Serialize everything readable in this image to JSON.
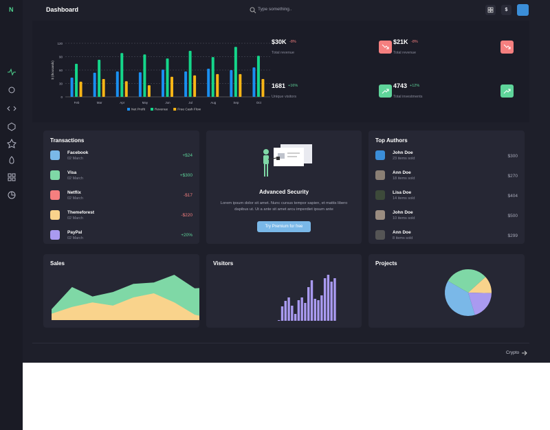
{
  "sidebar": {
    "logo": "N"
  },
  "header": {
    "title": "Dashboard",
    "search_placeholder": "Type something..",
    "currency": "$"
  },
  "stats": [
    {
      "value": "$30K",
      "change": "-8%",
      "label": "Total revenue"
    },
    {
      "value": "$21K",
      "change": "-8%",
      "label": "Total revenue"
    },
    {
      "value": "1681",
      "change": "+16%",
      "label": "Unique visitors"
    },
    {
      "value": "4743",
      "change": "+12%",
      "label": "Total investments"
    }
  ],
  "transactions": {
    "title": "Transactions",
    "items": [
      {
        "name": "Facebook",
        "date": "02 March",
        "amount": "+$24"
      },
      {
        "name": "Visa",
        "date": "02 March",
        "amount": "+$300"
      },
      {
        "name": "Netflix",
        "date": "02 March",
        "amount": "-$17"
      },
      {
        "name": "Themeforest",
        "date": "02 March",
        "amount": "-$220"
      },
      {
        "name": "PayPal",
        "date": "02 March",
        "amount": "+20%"
      }
    ]
  },
  "security": {
    "title": "Advanced Security",
    "text": "Lorem ipsum dolor sit amet. Nunc cursus tempor sapien, et mattis libero dapibus ut. Ut a ante sit amet arcu imperdiet ipsum ante",
    "button": "Try Premium for free"
  },
  "top_authors": {
    "title": "Top Authors",
    "items": [
      {
        "name": "John Doe",
        "sold": "23 items sold",
        "amount": "$300"
      },
      {
        "name": "Ann Doe",
        "sold": "18 items sold",
        "amount": "$270"
      },
      {
        "name": "Lisa Doe",
        "sold": "14 items sold",
        "amount": "$404"
      },
      {
        "name": "John Doe",
        "sold": "10 items sold",
        "amount": "$500"
      },
      {
        "name": "Ann Doe",
        "sold": "8 items sold",
        "amount": "$299"
      }
    ]
  },
  "chart_data": [
    {
      "type": "bar",
      "ylabel": "$ (thousands)",
      "categories": [
        "Feb",
        "Mar",
        "Apr",
        "May",
        "Jun",
        "Jul",
        "Aug",
        "Sep",
        "Oct"
      ],
      "series": [
        {
          "name": "Net Profit",
          "color": "#1a8ff0",
          "values": [
            43,
            54,
            57,
            55,
            61,
            57,
            63,
            60,
            66
          ]
        },
        {
          "name": "Revenue",
          "color": "#14d68a",
          "values": [
            74,
            83,
            98,
            95,
            86,
            103,
            89,
            112,
            92
          ]
        },
        {
          "name": "Free Cash Flow",
          "color": "#f8b516",
          "values": [
            34,
            40,
            35,
            26,
            45,
            48,
            51,
            51,
            40
          ]
        }
      ],
      "ylim": [
        0,
        120
      ],
      "yticks": [
        0,
        30,
        60,
        90,
        120
      ],
      "grid": true
    },
    {
      "type": "area",
      "title": "Sales",
      "series": [
        {
          "color": "#7fd8a6",
          "values": [
            24,
            73,
            52,
            62,
            80,
            83,
            100,
            70,
            73
          ]
        },
        {
          "color": "#f9d38c",
          "values": [
            14,
            29,
            39,
            32,
            50,
            59,
            39,
            12,
            2
          ]
        }
      ],
      "ylim": [
        0,
        100
      ]
    },
    {
      "type": "bar",
      "title": "Visitors",
      "color": "#a99af0",
      "values": [
        1,
        21,
        29,
        34,
        22,
        10,
        30,
        34,
        26,
        49,
        59,
        32,
        30,
        37,
        62,
        67,
        57,
        62
      ],
      "ylim": [
        0,
        70
      ]
    },
    {
      "type": "pie",
      "title": "Projects",
      "values": [
        30,
        12,
        20,
        38
      ],
      "colors": [
        "#7fd8a6",
        "#f9d38c",
        "#a99af0",
        "#7ab8e8"
      ]
    }
  ],
  "footer": {
    "link": "Crypto"
  }
}
